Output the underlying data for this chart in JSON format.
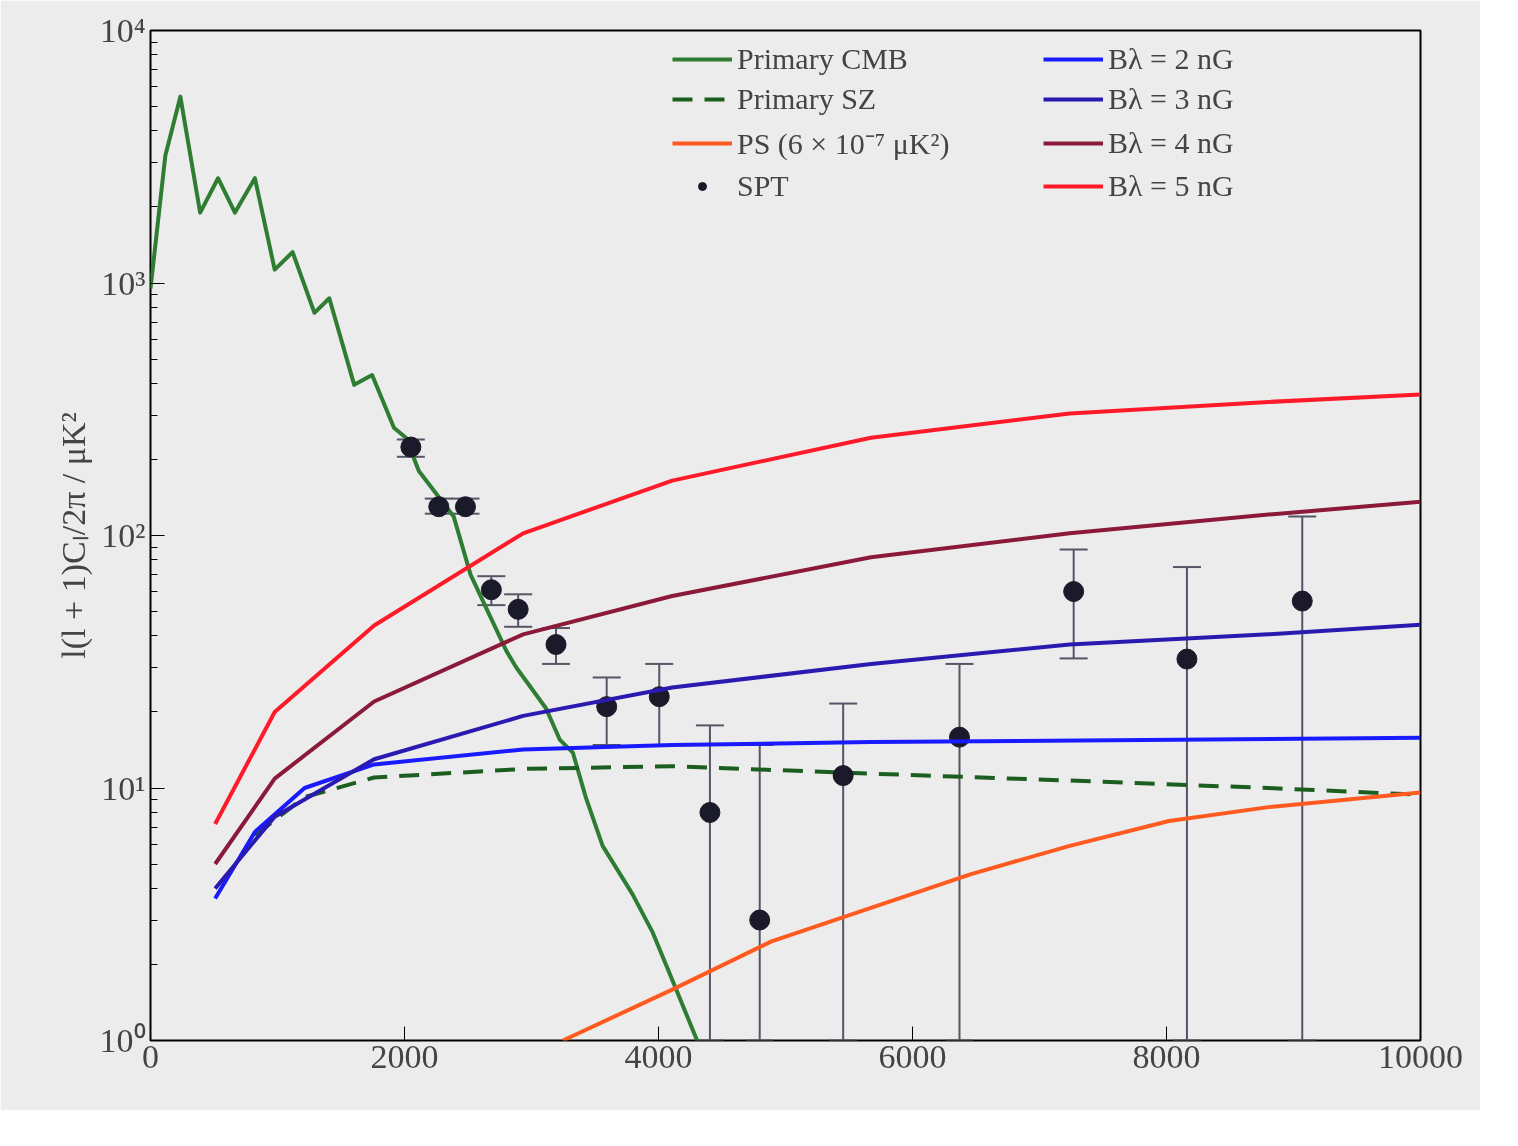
{
  "chart_data": {
    "type": "line",
    "xlabel": null,
    "ylabel": "l(l + 1)Cₗ/2π / μK²",
    "log": "y",
    "xlim": [
      0,
      10000
    ],
    "ylim": [
      1,
      10000
    ],
    "xticks": [
      0,
      2000,
      4000,
      6000,
      8000,
      10000
    ],
    "yticks": [
      {
        "value": 1,
        "label": "10⁰"
      },
      {
        "value": 10,
        "label": "10¹"
      },
      {
        "value": 100,
        "label": "10²"
      },
      {
        "value": 1000,
        "label": "10³"
      },
      {
        "value": 10000,
        "label": "10⁴"
      }
    ],
    "grid": false,
    "legend": "top right",
    "series": [
      {
        "name": "Primary CMB",
        "color": "#2e7d32",
        "line_style": "solid",
        "x": [
          0,
          117,
          235,
          391,
          532,
          665,
          822,
          978,
          1119,
          1291,
          1408,
          1604,
          1745,
          1917,
          2011,
          2113,
          2387,
          2520,
          2801,
          2880,
          3114,
          3224,
          3326,
          3427,
          3560,
          3795,
          3951,
          4108,
          4304
        ],
        "values": [
          950,
          3200,
          5470,
          1900,
          2600,
          1900,
          2600,
          1130,
          1325,
          762,
          870,
          395,
          432,
          267,
          244,
          180,
          119,
          70,
          35,
          30,
          20.7,
          15.5,
          13.8,
          9.2,
          5.9,
          3.8,
          2.7,
          1.74,
          1
        ]
      },
      {
        "name": "Primary SZ",
        "color": "#1b5e20",
        "line_style": "dashed",
        "x": [
          822,
          1213,
          1761,
          2934,
          4108,
          5673,
          7238,
          8803,
          10000
        ],
        "values": [
          6.5,
          9.2,
          11,
          11.9,
          12.2,
          11.4,
          10.7,
          10,
          9.4
        ]
      },
      {
        "name": "PS (6 × 10⁻⁷ μK²)",
        "color": "#ff5a1f",
        "line_style": "solid",
        "x": [
          3247,
          4108,
          4890,
          5673,
          6455,
          7238,
          8020,
          8803,
          10000
        ],
        "values": [
          1,
          1.59,
          2.47,
          3.35,
          4.55,
          5.9,
          7.4,
          8.4,
          9.6
        ]
      },
      {
        "name": "SPT",
        "type": "scatter",
        "color": "#1a1a2a",
        "marker": "circle",
        "x": [
          2050,
          2270,
          2480,
          2684,
          2895,
          3193,
          3592,
          4006,
          4405,
          4797,
          5454,
          6370,
          7269,
          8161,
          9069
        ],
        "values": [
          224,
          130,
          130,
          61,
          51,
          37,
          21,
          23,
          8.0,
          3.0,
          11.2,
          15.9,
          60,
          32.4,
          55
        ],
        "errors": [
          [
            205,
            240
          ],
          [
            122,
            140
          ],
          [
            122,
            140
          ],
          [
            53,
            69
          ],
          [
            43.5,
            58.5
          ],
          [
            31,
            43
          ],
          [
            14.8,
            27.4
          ],
          [
            14.8,
            31
          ],
          [
            1,
            17.7
          ],
          [
            1,
            14.8
          ],
          [
            1,
            21.6
          ],
          [
            1,
            31
          ],
          [
            32.6,
            88
          ],
          [
            1,
            75
          ],
          [
            1,
            119
          ]
        ]
      },
      {
        "name": "Bλ = 2 nG",
        "color": "#1a1aff",
        "line_style": "solid",
        "x": [
          509,
          822,
          1213,
          1761,
          2934,
          4108,
          5673,
          10000
        ],
        "values": [
          3.65,
          6.7,
          10,
          12.4,
          14.2,
          14.8,
          15.2,
          15.8
        ]
      },
      {
        "name": "Bλ = 3 nG",
        "color": "#2a1ab0",
        "line_style": "solid",
        "x": [
          509,
          978,
          1761,
          2934,
          4108,
          5673,
          7238,
          8803,
          10000
        ],
        "values": [
          4.0,
          7.7,
          13,
          19.3,
          25,
          31,
          37,
          40.6,
          44.3
        ]
      },
      {
        "name": "Bλ = 4 nG",
        "color": "#8b1a3a",
        "line_style": "solid",
        "x": [
          509,
          978,
          1761,
          2934,
          4108,
          5673,
          7238,
          8803,
          10000
        ],
        "values": [
          5.0,
          10.9,
          22,
          40.6,
          57.6,
          82,
          102,
          121,
          136
        ]
      },
      {
        "name": "Bλ = 5 nG",
        "color": "#ff1a2a",
        "line_style": "solid",
        "x": [
          509,
          978,
          1761,
          2934,
          4108,
          5673,
          7238,
          8803,
          10000
        ],
        "values": [
          7.2,
          20,
          44,
          102,
          165,
          244,
          304,
          338,
          362
        ]
      }
    ]
  }
}
